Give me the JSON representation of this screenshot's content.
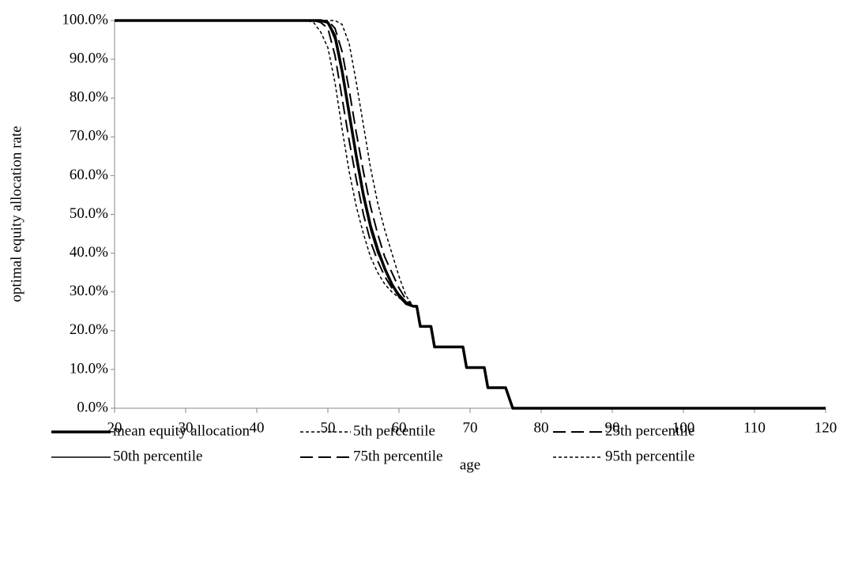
{
  "chart_data": {
    "type": "line",
    "x_label": "age",
    "y_label": "optimal equity allocation rate",
    "x": [
      20,
      47,
      48,
      49,
      50,
      51,
      52,
      53,
      54,
      55,
      56,
      57,
      58,
      59,
      60,
      61,
      62,
      62.5,
      63,
      64.5,
      65,
      69,
      69.5,
      72,
      72.5,
      75,
      76,
      120
    ],
    "series": [
      {
        "name": "mean equity allocation",
        "color": "#000000",
        "line_style": "thick-solid",
        "values": [
          100,
          100,
          100,
          100,
          99.5,
          96,
          87,
          76,
          65,
          55,
          47,
          41,
          36,
          32,
          29,
          27,
          26.3,
          26.3,
          21.1,
          21.1,
          15.8,
          15.8,
          10.5,
          10.5,
          5.3,
          5.3,
          0,
          0
        ]
      },
      {
        "name": "5th percentile",
        "color": "#000000",
        "line_style": "short-dash",
        "values": [
          100,
          100,
          99.5,
          97,
          93,
          84,
          72,
          61,
          52,
          45,
          39,
          35,
          32,
          30,
          28.5,
          27,
          26.3,
          26.3,
          21.1,
          21.1,
          15.8,
          15.8,
          10.5,
          10.5,
          5.3,
          5.3,
          0,
          0
        ]
      },
      {
        "name": "25th percentile",
        "color": "#000000",
        "line_style": "long-dash",
        "values": [
          100,
          100,
          100,
          99.5,
          98,
          91,
          80,
          69,
          59,
          50,
          43,
          38,
          34,
          31,
          29,
          27.2,
          26.3,
          26.3,
          21.1,
          21.1,
          15.8,
          15.8,
          10.5,
          10.5,
          5.3,
          5.3,
          0,
          0
        ]
      },
      {
        "name": "50th percentile",
        "color": "#000000",
        "line_style": "solid",
        "values": [
          100,
          100,
          100,
          100,
          99.5,
          95,
          86,
          75,
          64,
          54,
          46,
          40,
          36,
          32,
          29.5,
          27.5,
          26.3,
          26.3,
          21.1,
          21.1,
          15.8,
          15.8,
          10.5,
          10.5,
          5.3,
          5.3,
          0,
          0
        ]
      },
      {
        "name": "75th percentile",
        "color": "#000000",
        "line_style": "long-dash",
        "values": [
          100,
          100,
          100,
          100,
          100,
          98,
          92,
          82,
          71,
          61,
          52,
          45,
          39,
          35,
          31,
          28,
          26.3,
          26.3,
          21.1,
          21.1,
          15.8,
          15.8,
          10.5,
          10.5,
          5.3,
          5.3,
          0,
          0
        ]
      },
      {
        "name": "95th percentile",
        "color": "#000000",
        "line_style": "short-dash",
        "values": [
          100,
          100,
          100,
          100,
          100,
          100,
          99,
          94,
          84,
          73,
          62,
          53,
          46,
          40,
          34,
          29,
          26.3,
          26.3,
          21.1,
          21.1,
          15.8,
          15.8,
          10.5,
          10.5,
          5.3,
          5.3,
          0,
          0
        ]
      }
    ],
    "xlim": [
      20,
      120
    ],
    "xticks": [
      20,
      30,
      40,
      50,
      60,
      70,
      80,
      90,
      100,
      110,
      120
    ],
    "ylim": [
      0,
      100
    ],
    "yticks": [
      {
        "value": 0,
        "label": "0.0%"
      },
      {
        "value": 10,
        "label": "10.0%"
      },
      {
        "value": 20,
        "label": "20.0%"
      },
      {
        "value": 30,
        "label": "30.0%"
      },
      {
        "value": 40,
        "label": "40.0%"
      },
      {
        "value": 50,
        "label": "50.0%"
      },
      {
        "value": 60,
        "label": "60.0%"
      },
      {
        "value": 70,
        "label": "70.0%"
      },
      {
        "value": 80,
        "label": "80.0%"
      },
      {
        "value": 90,
        "label": "90.0%"
      },
      {
        "value": 100,
        "label": "100.0%"
      }
    ],
    "grid": false,
    "legend": "bottom"
  }
}
